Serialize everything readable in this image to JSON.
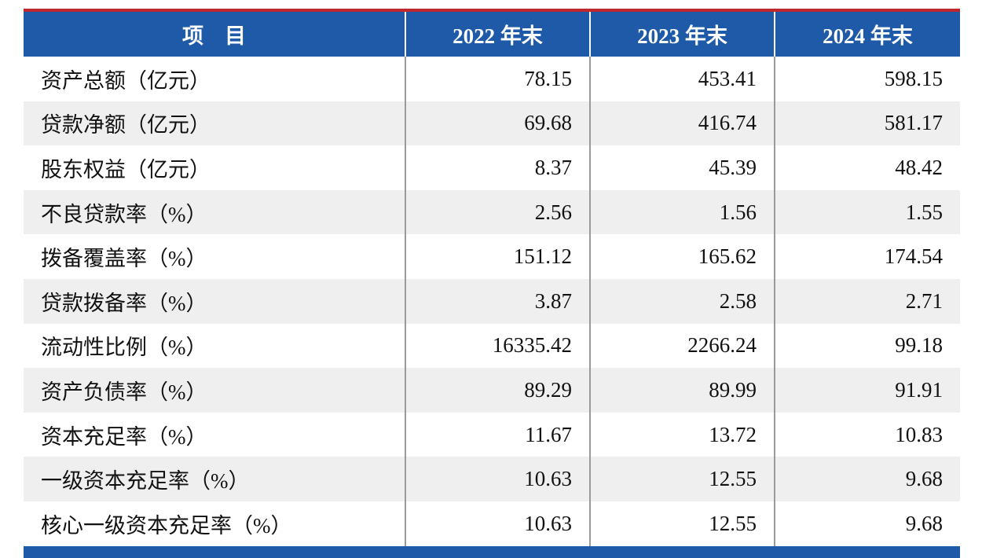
{
  "table": {
    "header": [
      "项　目",
      "2022 年末",
      "2023 年末",
      "2024 年末"
    ],
    "rows": [
      [
        "资产总额（亿元）",
        "78.15",
        "453.41",
        "598.15"
      ],
      [
        "贷款净额（亿元）",
        "69.68",
        "416.74",
        "581.17"
      ],
      [
        "股东权益（亿元）",
        "8.37",
        "45.39",
        "48.42"
      ],
      [
        "不良贷款率（%）",
        "2.56",
        "1.56",
        "1.55"
      ],
      [
        "拨备覆盖率（%）",
        "151.12",
        "165.62",
        "174.54"
      ],
      [
        "贷款拨备率（%）",
        "3.87",
        "2.58",
        "2.71"
      ],
      [
        "流动性比例（%）",
        "16335.42",
        "2266.24",
        "99.18"
      ],
      [
        "资产负债率（%）",
        "89.29",
        "89.99",
        "91.91"
      ],
      [
        "资本充足率（%）",
        "11.67",
        "13.72",
        "10.83"
      ],
      [
        "一级资本充足率（%）",
        "10.63",
        "12.55",
        "9.68"
      ],
      [
        "核心一级资本充足率（%）",
        "10.63",
        "12.55",
        "9.68"
      ]
    ]
  }
}
